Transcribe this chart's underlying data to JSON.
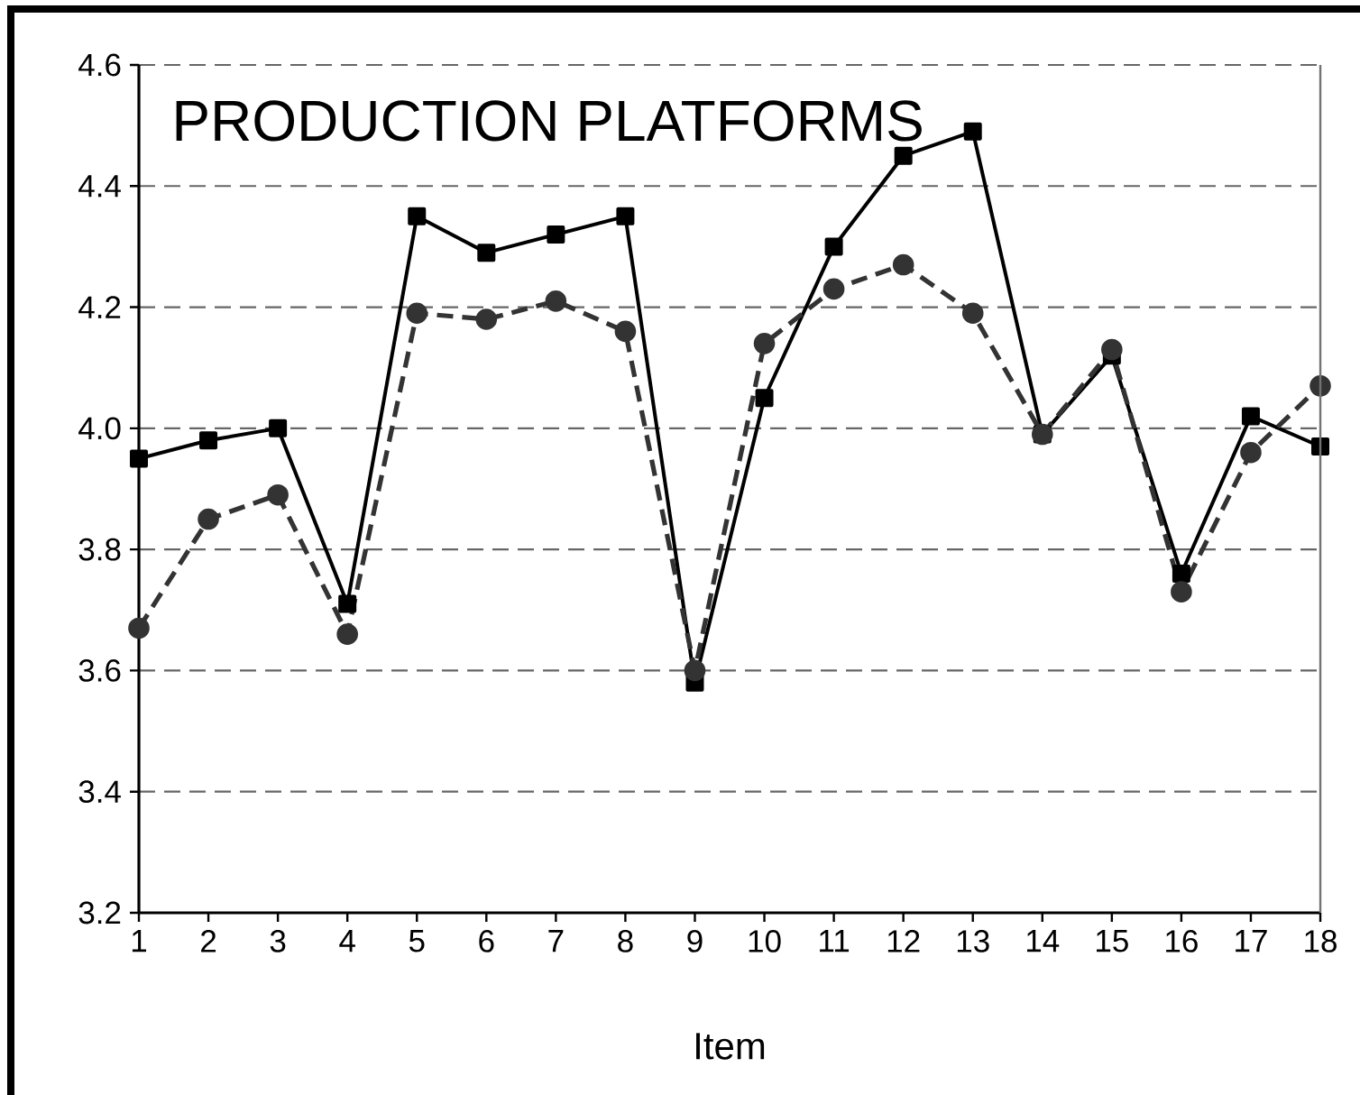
{
  "chart_data": {
    "type": "line",
    "title": "PRODUCTION PLATFORMS",
    "xlabel": "Item",
    "x": [
      1,
      2,
      3,
      4,
      5,
      6,
      7,
      8,
      9,
      10,
      11,
      12,
      13,
      14,
      15,
      16,
      17,
      18
    ],
    "xlim": [
      1,
      18
    ],
    "xticks": [
      1,
      2,
      3,
      4,
      5,
      6,
      7,
      8,
      9,
      10,
      11,
      12,
      13,
      14,
      15,
      16,
      17,
      18
    ],
    "ylim": [
      3.2,
      4.6
    ],
    "yticks": [
      3.2,
      3.4,
      3.6,
      3.8,
      {
        "value": 4.0,
        "label": "4.0"
      },
      4.2,
      4.4,
      4.6
    ],
    "grid": "y",
    "series": [
      {
        "color": "#000000",
        "marker": "square",
        "line_style": "solid",
        "values": [
          3.95,
          3.98,
          4.0,
          3.71,
          4.35,
          4.29,
          4.32,
          4.35,
          3.58,
          4.05,
          4.3,
          4.45,
          4.49,
          3.99,
          4.12,
          3.76,
          4.02,
          3.97
        ]
      },
      {
        "color": "#333333",
        "marker": "circle",
        "line_style": "dashed",
        "values": [
          3.67,
          3.85,
          3.89,
          3.66,
          4.19,
          4.18,
          4.21,
          4.16,
          3.6,
          4.14,
          4.23,
          4.27,
          4.19,
          3.99,
          4.13,
          3.73,
          3.96,
          4.07
        ]
      }
    ]
  }
}
